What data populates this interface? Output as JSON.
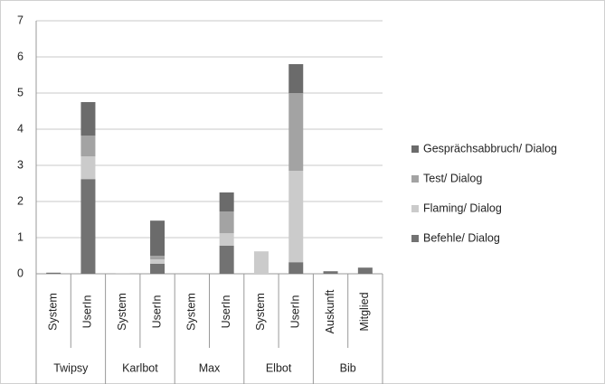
{
  "chart_data": {
    "type": "stacked-bar",
    "categories": [
      "System",
      "UserIn",
      "System",
      "UserIn",
      "System",
      "UserIn",
      "System",
      "UserIn",
      "Auskunft",
      "Mitglied"
    ],
    "groups": [
      "Twipsy",
      "Karlbot",
      "Max",
      "Elbot",
      "Bib"
    ],
    "series": [
      {
        "name": "Befehle/ Dialog",
        "color": "#727272",
        "values": [
          0.03,
          2.62,
          0,
          0.28,
          0,
          0.78,
          0,
          0.32,
          0.07,
          0.17
        ]
      },
      {
        "name": "Flaming/ Dialog",
        "color": "#cbcbcb",
        "values": [
          0,
          0.63,
          0.02,
          0.12,
          0,
          0.34,
          0.62,
          2.53,
          0,
          0
        ]
      },
      {
        "name": "Test/ Dialog",
        "color": "#a3a3a3",
        "values": [
          0,
          0.57,
          0,
          0.1,
          0,
          0.6,
          0,
          2.15,
          0,
          0
        ]
      },
      {
        "name": "Gesprächsabbruch/ Dialog",
        "color": "#6b6b6b",
        "values": [
          0,
          0.93,
          0,
          0.97,
          0,
          0.53,
          0,
          0.8,
          0,
          0
        ]
      }
    ],
    "ylim": [
      0,
      7
    ],
    "yticks": [
      0,
      1,
      2,
      3,
      4,
      5,
      6,
      7
    ],
    "grid": true,
    "legend": "right"
  }
}
